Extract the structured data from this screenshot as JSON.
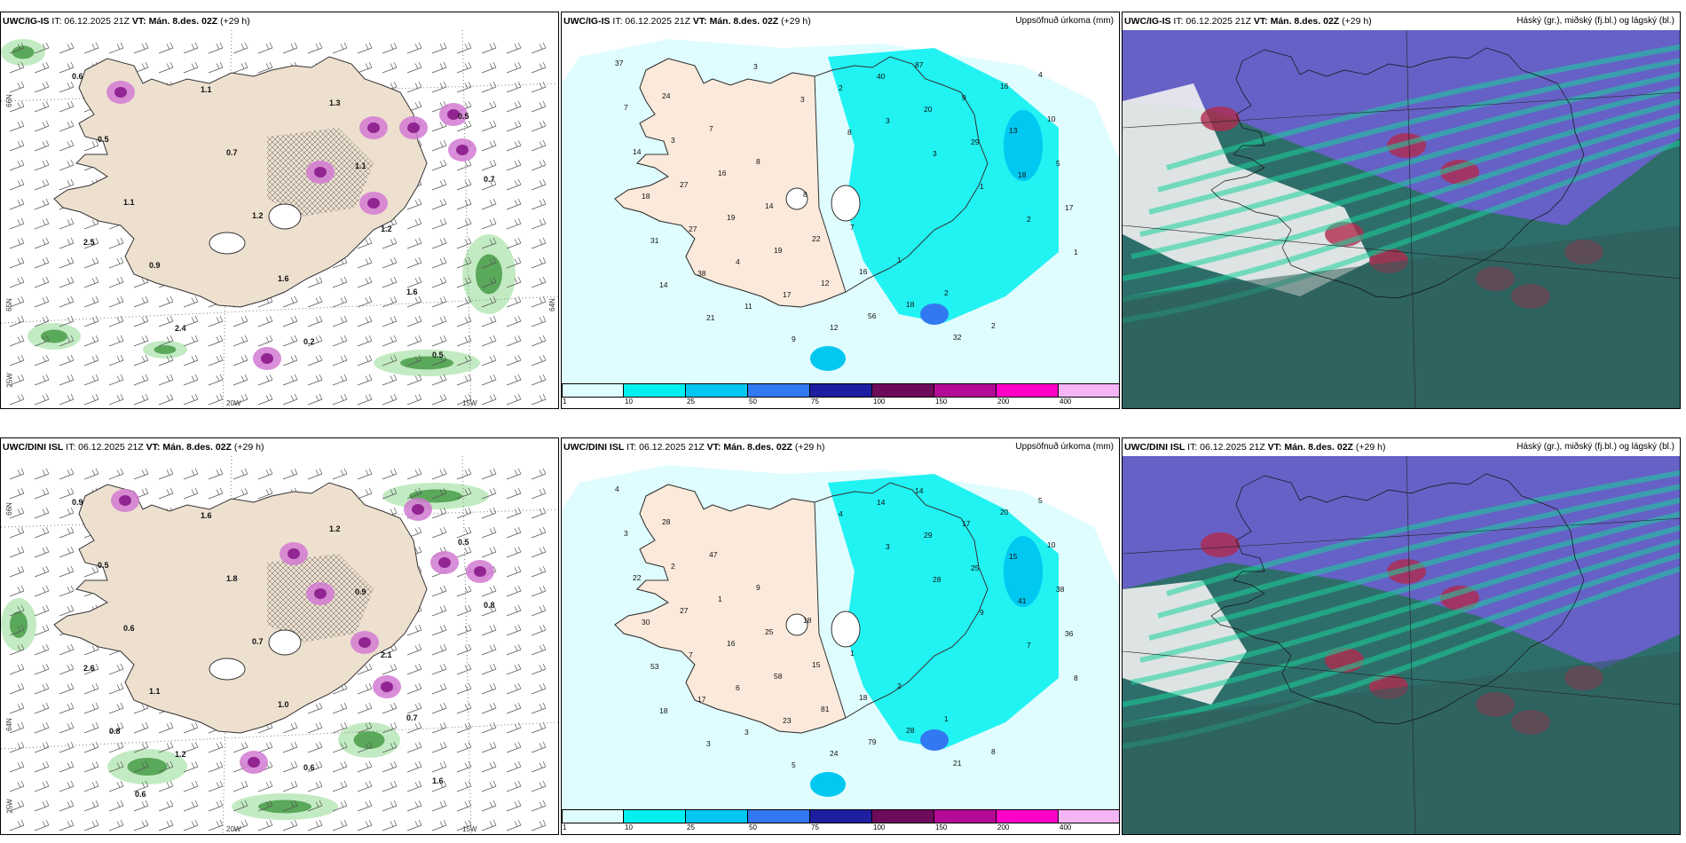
{
  "panels": [
    {
      "model": "UWC/IG-IS",
      "kind": "windprecip",
      "it": "IT: 06.12.2025 21Z",
      "vt": "VT: Mán. 8.des. 02Z",
      "lead": "(+29 h)",
      "right": ""
    },
    {
      "model": "UWC/IG-IS",
      "kind": "accum",
      "it": "IT: 06.12.2025 21Z",
      "vt": "VT: Mán. 8.des. 02Z",
      "lead": "(+29 h)",
      "right": "Uppsöfnuð úrkoma (mm)"
    },
    {
      "model": "UWC/IG-IS",
      "kind": "cloud",
      "it": "IT: 06.12.2025 21Z",
      "vt": "VT: Mán. 8.des. 02Z",
      "lead": "(+29 h)",
      "right": "Háský (gr.), miðský (fj.bl.) og lágský (bl.)"
    },
    {
      "model": "UWC/DINI ISL",
      "kind": "windprecip",
      "it": "IT: 06.12.2025 21Z",
      "vt": "VT: Mán. 8.des. 02Z",
      "lead": "(+29 h)",
      "right": ""
    },
    {
      "model": "UWC/DINI ISL",
      "kind": "accum",
      "it": "IT: 06.12.2025 21Z",
      "vt": "VT: Mán. 8.des. 02Z",
      "lead": "(+29 h)",
      "right": "Uppsöfnuð úrkoma (mm)"
    },
    {
      "model": "UWC/DINI ISL",
      "kind": "cloud",
      "it": "IT: 06.12.2025 21Z",
      "vt": "VT: Mán. 8.des. 02Z",
      "lead": "(+29 h)",
      "right": "Háský (gr.), miðský (fj.bl.) og lágský (bl.)"
    }
  ],
  "legend": {
    "ticks": [
      "1",
      "10",
      "25",
      "50",
      "75",
      "100",
      "150",
      "200",
      "400"
    ],
    "colors": [
      "#dffcff",
      "#00f0f0",
      "#00c8f0",
      "#3278f0",
      "#1e1ea0",
      "#6e0a5a",
      "#b40a96",
      "#ff00c8",
      "#f5b4f5"
    ]
  },
  "grid_labels": {
    "top_left": [
      "66N",
      "65N",
      "64N",
      "25W",
      "20W",
      "15W"
    ],
    "bottom_left": [
      "66N",
      "64N",
      "25W",
      "20W",
      "15W"
    ]
  },
  "precip_labels_top": [
    "0.6",
    "0.5",
    "1.1",
    "0.9",
    "2.4",
    "1.1",
    "0.7",
    "1.2",
    "1.6",
    "0.2",
    "1.3",
    "1.1",
    "1.2",
    "1.6",
    "0.5",
    "0.5",
    "0.7",
    "2.5"
  ],
  "precip_labels_bottom": [
    "0.9",
    "0.5",
    "0.6",
    "1.1",
    "1.2",
    "1.6",
    "1.8",
    "0.7",
    "1.0",
    "0.6",
    "1.2",
    "0.9",
    "2.1",
    "0.7",
    "1.6",
    "0.5",
    "0.8",
    "2.6",
    "0.8",
    "0.6"
  ],
  "accum_labels_top": [
    "37",
    "24",
    "7",
    "8",
    "8",
    "7",
    "1",
    "2",
    "2",
    "4",
    "7",
    "3",
    "16",
    "14",
    "22",
    "16",
    "18",
    "32",
    "16",
    "10",
    "14",
    "27",
    "19",
    "19",
    "12",
    "56",
    "87",
    "9",
    "13",
    "5",
    "18",
    "27",
    "4",
    "17",
    "12",
    "40",
    "20",
    "29",
    "18",
    "17",
    "31",
    "38",
    "11",
    "9",
    "2",
    "3",
    "3",
    "1",
    "2",
    "1",
    "14",
    "21",
    "3",
    "3",
    "8"
  ],
  "accum_labels_bottom": [
    "4",
    "28",
    "47",
    "9",
    "18",
    "1",
    "2",
    "1",
    "8",
    "5",
    "3",
    "2",
    "1",
    "25",
    "15",
    "18",
    "28",
    "21",
    "20",
    "10",
    "22",
    "27",
    "16",
    "58",
    "81",
    "79",
    "14",
    "17",
    "15",
    "38",
    "30",
    "7",
    "6",
    "23",
    "24",
    "14",
    "29",
    "25",
    "41",
    "36",
    "53",
    "17",
    "3",
    "5",
    "4",
    "3",
    "28",
    "9",
    "7",
    "8",
    "18",
    "3"
  ]
}
